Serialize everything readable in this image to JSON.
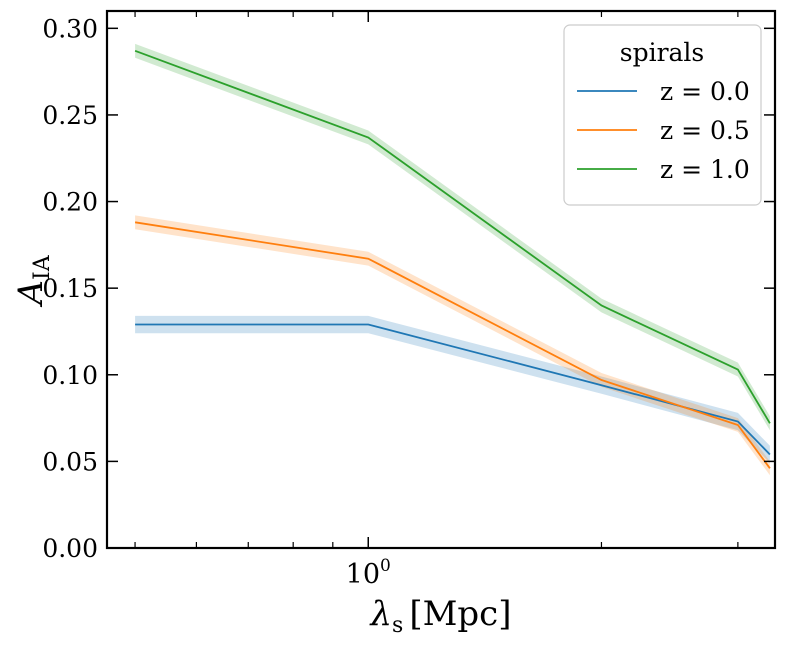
{
  "chart_data": {
    "type": "line",
    "title": "",
    "xlabel": "λs [Mpc]",
    "xlabel_parts": {
      "symbol": "λ",
      "sub": "s",
      "unit": "[Mpc]"
    },
    "ylabel": "AIA",
    "ylabel_parts": {
      "symbol": "A",
      "sub": "IA"
    },
    "xscale": "log",
    "xlim": [
      0.46,
      3.35
    ],
    "ylim": [
      0.0,
      0.31
    ],
    "yticks": [
      0.0,
      0.05,
      0.1,
      0.15,
      0.2,
      0.25,
      0.3
    ],
    "yticklabels": [
      "0.00",
      "0.05",
      "0.10",
      "0.15",
      "0.20",
      "0.25",
      "0.30"
    ],
    "xticks_major": [
      1.0
    ],
    "xticklabels": [
      {
        "base": "10",
        "exp": "0"
      }
    ],
    "xticks_minor": [
      0.5,
      0.6,
      0.7,
      0.8,
      0.9,
      2,
      3
    ],
    "x": [
      0.5,
      1.0,
      2.0,
      3.0
    ],
    "grid": false,
    "legend": {
      "title": "spirals",
      "position": "top-right"
    },
    "series": [
      {
        "name": "z = 0.0",
        "color": "#1f77b4",
        "values": [
          0.129,
          0.129,
          0.094,
          0.073,
          0.054
        ],
        "x": [
          0.5,
          1.0,
          2.0,
          3.0,
          3.3
        ],
        "band": 0.005
      },
      {
        "name": "z = 0.5",
        "color": "#ff7f0e",
        "values": [
          0.188,
          0.167,
          0.097,
          0.071,
          0.046
        ],
        "x": [
          0.5,
          1.0,
          2.0,
          3.0,
          3.3
        ],
        "band": 0.004
      },
      {
        "name": "z = 1.0",
        "color": "#2ca02c",
        "values": [
          0.287,
          0.237,
          0.14,
          0.103,
          0.072
        ],
        "x": [
          0.5,
          1.0,
          2.0,
          3.0,
          3.3
        ],
        "band": 0.004
      }
    ]
  }
}
